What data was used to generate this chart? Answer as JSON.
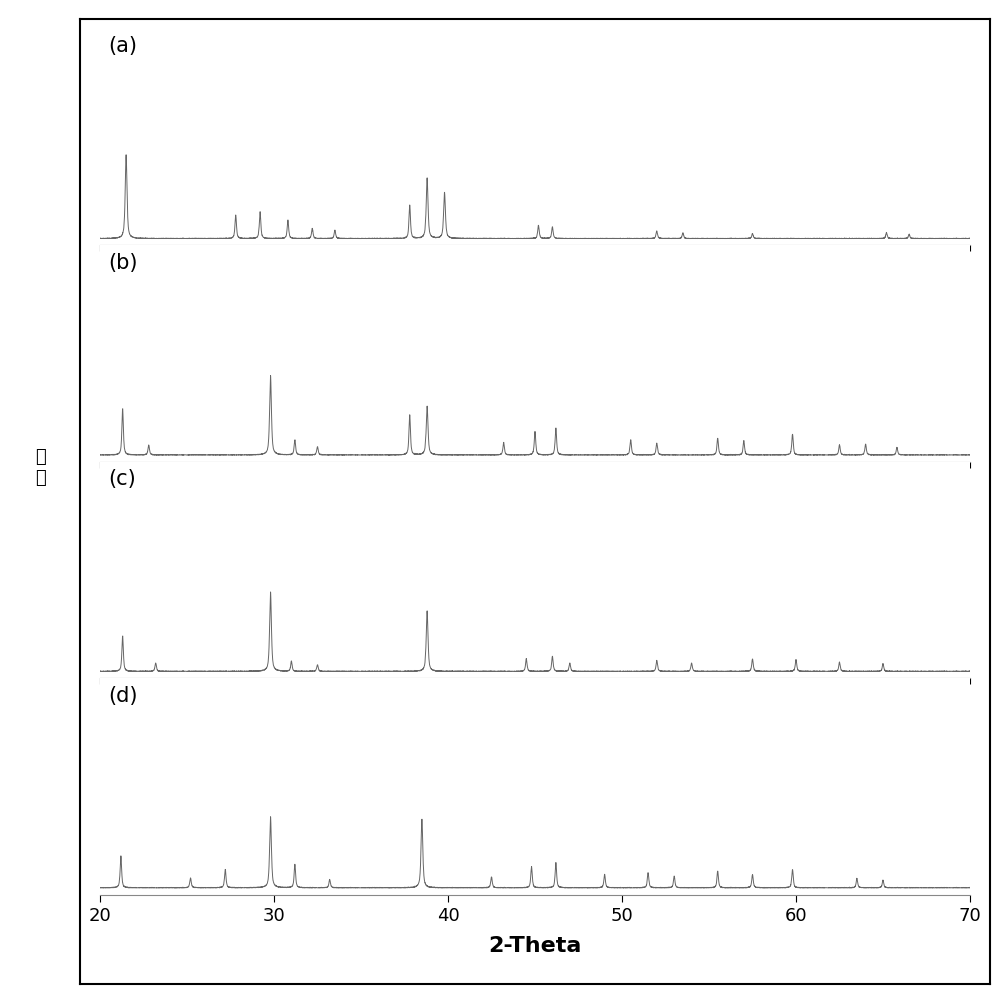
{
  "xlabel": "2-Theta",
  "xlim": [
    20,
    70
  ],
  "panels": [
    "(a)",
    "(b)",
    "(c)",
    "(d)"
  ],
  "line_color": "#666666",
  "bg_color": "#ffffff",
  "xticks": [
    20,
    30,
    40,
    50,
    60,
    70
  ],
  "peaks": {
    "a": {
      "positions": [
        21.5,
        27.8,
        29.2,
        30.8,
        32.2,
        33.5,
        37.8,
        38.8,
        39.8,
        45.2,
        46.0,
        52.0,
        53.5,
        57.5,
        65.2,
        66.5
      ],
      "heights": [
        1.0,
        0.28,
        0.32,
        0.22,
        0.12,
        0.1,
        0.4,
        0.72,
        0.55,
        0.16,
        0.14,
        0.09,
        0.07,
        0.06,
        0.07,
        0.05
      ],
      "widths": [
        0.12,
        0.1,
        0.1,
        0.1,
        0.1,
        0.1,
        0.1,
        0.12,
        0.12,
        0.1,
        0.1,
        0.1,
        0.1,
        0.1,
        0.1,
        0.1
      ]
    },
    "b": {
      "positions": [
        21.3,
        22.8,
        29.8,
        31.2,
        32.5,
        37.8,
        38.8,
        43.2,
        45.0,
        46.2,
        50.5,
        52.0,
        55.5,
        57.0,
        59.8,
        62.5,
        64.0,
        65.8
      ],
      "heights": [
        0.55,
        0.12,
        0.95,
        0.18,
        0.1,
        0.48,
        0.58,
        0.15,
        0.28,
        0.32,
        0.18,
        0.14,
        0.2,
        0.17,
        0.25,
        0.12,
        0.13,
        0.09
      ],
      "widths": [
        0.1,
        0.1,
        0.12,
        0.1,
        0.1,
        0.1,
        0.12,
        0.1,
        0.1,
        0.1,
        0.1,
        0.1,
        0.1,
        0.1,
        0.1,
        0.1,
        0.1,
        0.1
      ]
    },
    "c": {
      "positions": [
        21.3,
        23.2,
        29.8,
        31.0,
        32.5,
        38.8,
        44.5,
        46.0,
        47.0,
        52.0,
        54.0,
        57.5,
        60.0,
        62.5,
        65.0
      ],
      "heights": [
        0.42,
        0.1,
        0.95,
        0.12,
        0.08,
        0.72,
        0.15,
        0.18,
        0.1,
        0.13,
        0.1,
        0.15,
        0.14,
        0.11,
        0.09
      ],
      "widths": [
        0.1,
        0.1,
        0.12,
        0.1,
        0.1,
        0.12,
        0.1,
        0.1,
        0.1,
        0.1,
        0.1,
        0.1,
        0.1,
        0.1,
        0.1
      ]
    },
    "d": {
      "positions": [
        21.2,
        25.2,
        27.2,
        29.8,
        31.2,
        33.2,
        38.5,
        42.5,
        44.8,
        46.2,
        49.0,
        51.5,
        53.0,
        55.5,
        57.5,
        59.8,
        63.5,
        65.0
      ],
      "heights": [
        0.38,
        0.12,
        0.22,
        0.85,
        0.28,
        0.1,
        0.82,
        0.13,
        0.25,
        0.3,
        0.16,
        0.18,
        0.14,
        0.2,
        0.16,
        0.22,
        0.11,
        0.09
      ],
      "widths": [
        0.1,
        0.1,
        0.1,
        0.12,
        0.1,
        0.1,
        0.12,
        0.1,
        0.1,
        0.1,
        0.1,
        0.1,
        0.1,
        0.1,
        0.1,
        0.1,
        0.1,
        0.1
      ]
    }
  }
}
